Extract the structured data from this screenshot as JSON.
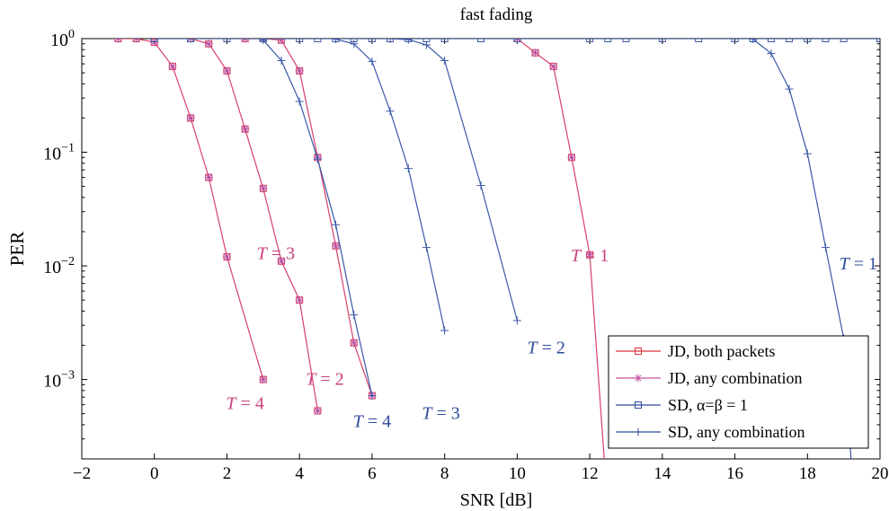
{
  "chart_data": {
    "type": "line",
    "title": "fast fading",
    "xlabel": "SNR [dB]",
    "ylabel": "PER",
    "xlim": [
      -2,
      20
    ],
    "ylim": [
      0.0002,
      1
    ],
    "yscale": "log",
    "grid": false,
    "legend_position": "bottom-right",
    "xticks": [
      -2,
      0,
      2,
      4,
      6,
      8,
      10,
      12,
      14,
      16,
      18,
      20
    ],
    "xtick_labels": [
      "−2",
      "0",
      "2",
      "4",
      "6",
      "8",
      "10",
      "12",
      "14",
      "16",
      "18",
      "20"
    ],
    "yticks": [
      {
        "value": 1,
        "base": "10",
        "exp": "0"
      },
      {
        "value": 0.1,
        "base": "10",
        "exp": "−1"
      },
      {
        "value": 0.01,
        "base": "10",
        "exp": "−2"
      },
      {
        "value": 0.001,
        "base": "10",
        "exp": "−3"
      }
    ],
    "colors": {
      "jd": "#d6406a",
      "sd": "#3a58a8",
      "sd_dark": "#24408f"
    },
    "legend": [
      {
        "label": "JD, both packets",
        "marker": "square",
        "color": "#e0303a"
      },
      {
        "label": "JD, any combination",
        "marker": "star",
        "color": "#c84fa8"
      },
      {
        "label": "SD, α=β = 1",
        "marker": "square",
        "color": "#2d4b9c"
      },
      {
        "label": "SD, any combination",
        "marker": "plus",
        "color": "#2d4b9c"
      }
    ],
    "series": [
      {
        "group": "JD",
        "marker": "square",
        "color": "#d6406a",
        "x": [
          -1,
          -0.5,
          0,
          0.5,
          1,
          1.5,
          2,
          2.5,
          3
        ],
        "y": [
          1,
          1,
          0.93,
          0.57,
          0.2,
          0.06,
          0.012,
          null,
          0.001
        ]
      },
      {
        "group": "JD",
        "marker": "square",
        "color": "#d6406a",
        "x": [
          1,
          1.5,
          2,
          2.5,
          3,
          3.5,
          4,
          4.5
        ],
        "y": [
          1,
          0.9,
          0.52,
          0.16,
          0.048,
          0.011,
          0.005,
          0.00053
        ]
      },
      {
        "group": "JD",
        "marker": "square",
        "color": "#d6406a",
        "x": [
          2.5,
          3,
          3.5,
          4,
          4.5,
          5,
          5.5,
          6
        ],
        "y": [
          1,
          1,
          0.97,
          0.52,
          0.09,
          0.015,
          0.0021,
          0.00072
        ]
      },
      {
        "group": "JD",
        "marker": "square",
        "color": "#d6406a",
        "x": [
          10,
          10.5,
          11,
          11.5,
          12,
          12.4
        ],
        "y": [
          1,
          0.75,
          0.57,
          0.09,
          0.0125,
          0.0002
        ]
      },
      {
        "group": "SD",
        "marker": "plus",
        "color": "#3a58a8",
        "x": [
          3,
          3.5,
          4,
          4.5,
          5,
          5.5,
          6
        ],
        "y": [
          0.97,
          0.64,
          0.28,
          0.087,
          0.023,
          0.0037,
          0.00072
        ]
      },
      {
        "group": "SD",
        "marker": "plus",
        "color": "#3a58a8",
        "x": [
          5,
          5.5,
          6,
          6.5,
          7,
          7.5,
          8
        ],
        "y": [
          0.99,
          0.9,
          0.63,
          0.23,
          0.072,
          0.0145,
          0.0027
        ]
      },
      {
        "group": "SD",
        "marker": "plus",
        "color": "#3a58a8",
        "x": [
          6.5,
          7,
          7.5,
          8,
          9,
          10
        ],
        "y": [
          1,
          0.98,
          0.88,
          0.64,
          0.051,
          0.0033
        ]
      },
      {
        "group": "SD",
        "marker": "plus",
        "color": "#3a58a8",
        "x": [
          16.5,
          17,
          17.5,
          18,
          18.5,
          19,
          19.2
        ],
        "y": [
          0.99,
          0.74,
          0.36,
          0.097,
          0.0145,
          0.0023,
          0.0002
        ]
      },
      {
        "group": "SD",
        "marker": "square",
        "color": "#3a58a8",
        "x": [
          0,
          1,
          2,
          3,
          4,
          4.5,
          5,
          5.5,
          6,
          6.5,
          7,
          7.5,
          8,
          9,
          10,
          12,
          12.5,
          13,
          14,
          15,
          16,
          16.5,
          17,
          17.5,
          18,
          18.5,
          19,
          20
        ],
        "y": [
          1,
          1,
          1,
          1,
          1,
          1,
          1,
          1,
          1,
          1,
          1,
          1,
          1,
          1,
          1,
          1,
          1,
          1,
          1,
          1,
          1,
          1,
          1,
          1,
          1,
          1,
          1,
          1
        ]
      }
    ],
    "annotations": [
      {
        "text": "T = 4",
        "x": 2.5,
        "y": 0.00055,
        "color": "#c8407e"
      },
      {
        "text": "T = 3",
        "x": 3.35,
        "y": 0.0115,
        "color": "#c8407e"
      },
      {
        "text": "T = 2",
        "x": 4.7,
        "y": 0.0009,
        "color": "#c8407e"
      },
      {
        "text": "T = 4",
        "x": 6.0,
        "y": 0.00038,
        "color": "#2d4b9c"
      },
      {
        "text": "T = 3",
        "x": 7.9,
        "y": 0.00045,
        "color": "#2d4b9c"
      },
      {
        "text": "T = 2",
        "x": 10.8,
        "y": 0.0017,
        "color": "#2d4b9c"
      },
      {
        "text": "T = 1",
        "x": 12.0,
        "y": 0.011,
        "color": "#c8407e"
      },
      {
        "text": "T = 1",
        "x": 19.4,
        "y": 0.0093,
        "color": "#2d4b9c"
      }
    ]
  }
}
